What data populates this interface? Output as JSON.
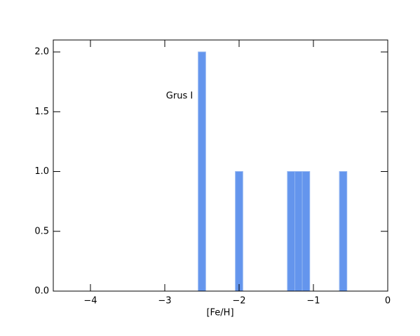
{
  "chart_data": {
    "type": "histogram",
    "bins": [
      -2.55,
      -2.45,
      -2.35,
      -2.25,
      -2.15,
      -2.05,
      -1.95,
      -1.85,
      -1.75,
      -1.65,
      -1.55,
      -1.45,
      -1.35,
      -1.25,
      -1.15,
      -1.05,
      -0.95,
      -0.85,
      -0.75,
      -0.65,
      -0.55
    ],
    "values": [
      2,
      0,
      0,
      0,
      0,
      1,
      0,
      0,
      0,
      0,
      0,
      0,
      1,
      1,
      1,
      0,
      0,
      0,
      0,
      1
    ],
    "color": "#6495ed",
    "xlabel": "[Fe/H]",
    "annotation": "Grus I",
    "xlim": [
      -4.5,
      0
    ],
    "xticks": [
      {
        "value": -4,
        "label": "−4"
      },
      {
        "value": -3,
        "label": "−3"
      },
      {
        "value": -2,
        "label": "−2"
      },
      {
        "value": -1,
        "label": "−1"
      },
      0
    ],
    "ylim": [
      0,
      2.1
    ],
    "yticks": [
      {
        "value": 0,
        "label": "0.0"
      },
      {
        "value": 0.5,
        "label": "0.5"
      },
      {
        "value": 1,
        "label": "1.0"
      },
      {
        "value": 1.5,
        "label": "1.5"
      },
      {
        "value": 2,
        "label": "2.0"
      }
    ],
    "grid": false
  }
}
